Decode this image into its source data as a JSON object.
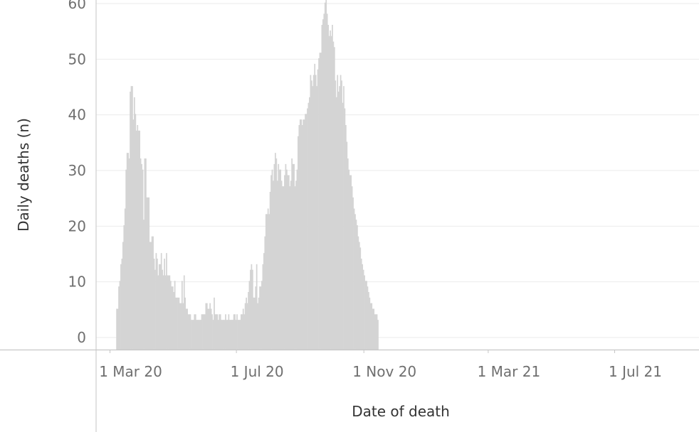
{
  "chart_data": {
    "type": "bar",
    "xlabel": "Date of death",
    "ylabel": "Daily deaths (n)",
    "x_tick_labels": [
      "1 Mar 20",
      "1 Jul 20",
      "1 Nov 20",
      "1 Mar 21",
      "1 Jul 21"
    ],
    "x_tick_dates": [
      "2020-03-01",
      "2020-07-01",
      "2020-11-01",
      "2021-03-01",
      "2021-07-01"
    ],
    "y_ticks": [
      0,
      10,
      20,
      30,
      40,
      50,
      60
    ],
    "ylim": [
      0,
      60
    ],
    "xlim": [
      "2020-02-16",
      "2021-10-01"
    ],
    "grid": true,
    "bar_color": "#d4d4d4",
    "series": [
      {
        "segments": [
          {
            "start": "2020-03-07",
            "values": [
              3,
              3,
              7,
              8,
              11,
              12,
              15,
              18,
              21,
              28,
              31,
              31,
              30,
              42,
              43,
              43,
              37,
              41,
              38,
              35,
              36,
              35,
              35,
              30,
              29,
              28,
              19,
              30,
              30,
              23,
              23,
              23,
              15,
              15,
              16,
              16,
              12,
              10,
              13,
              12,
              9,
              11,
              11,
              13,
              10,
              9,
              12,
              9,
              13,
              9,
              9,
              9,
              8,
              7,
              7,
              6,
              8,
              5,
              5,
              5,
              5,
              4,
              4,
              8,
              4,
              9,
              5,
              3,
              3,
              2,
              2,
              2,
              1,
              1,
              1,
              2,
              2,
              1,
              1,
              1,
              1,
              1,
              2,
              2,
              2,
              2,
              4,
              4,
              3,
              3,
              4,
              3,
              2,
              1,
              5,
              2,
              2,
              2,
              1,
              2,
              2,
              1,
              1,
              1,
              1,
              2,
              1,
              1,
              2,
              1,
              1,
              1,
              1,
              2,
              2,
              1,
              2,
              1,
              1,
              1,
              2,
              2,
              3,
              2,
              4,
              5,
              4,
              6,
              8,
              10,
              11,
              10,
              5,
              5,
              7,
              11,
              4,
              5,
              7,
              7,
              8,
              11,
              13,
              16,
              20,
              20,
              21,
              20,
              24,
              27,
              28,
              26,
              29,
              31,
              30,
              26,
              29,
              28,
              28,
              26,
              25,
              25,
              27,
              29,
              28,
              27,
              27,
              25,
              26,
              30,
              29,
              29,
              25,
              26,
              28,
              34,
              36,
              37,
              37,
              36,
              37,
              37,
              38,
              38,
              39,
              40,
              41,
              45,
              44,
              43,
              45,
              47,
              45,
              43,
              46,
              48,
              49,
              49,
              54,
              55,
              56,
              58,
              60,
              56,
              54,
              52,
              53,
              52,
              54,
              51,
              50,
              44,
              41,
              45,
              42,
              43,
              45,
              44,
              40,
              43,
              39,
              36,
              33,
              30,
              28,
              27,
              27,
              25,
              23,
              21,
              20,
              19,
              18,
              16,
              15,
              14,
              12,
              11,
              10,
              9,
              8,
              8,
              7,
              6,
              5,
              4,
              4,
              3,
              3,
              2,
              2,
              2,
              1
            ]
          }
        ]
      }
    ]
  }
}
